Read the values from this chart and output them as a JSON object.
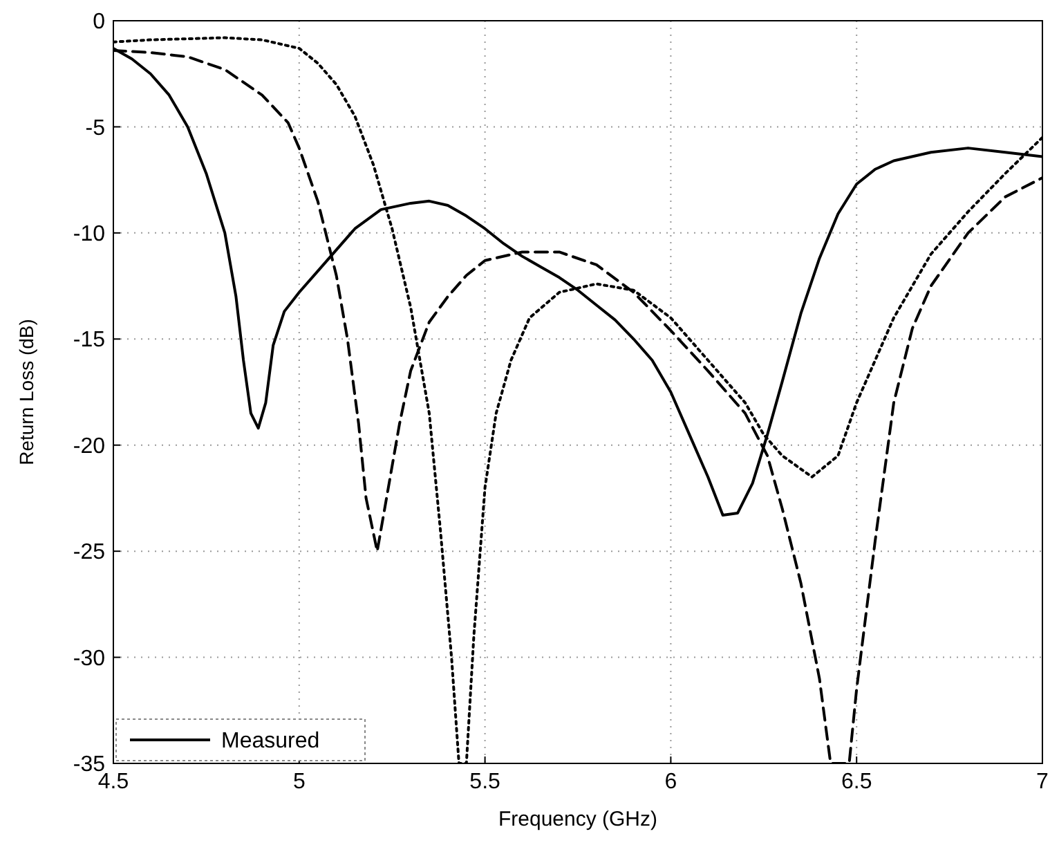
{
  "chart_data": {
    "type": "line",
    "xlabel": "Frequency (GHz)",
    "ylabel": "Return Loss (dB)",
    "xlim": [
      4.5,
      7
    ],
    "xticks": [
      4.5,
      5,
      5.5,
      6,
      6.5,
      7
    ],
    "ylim": [
      -35,
      0
    ],
    "yticks": [
      -35,
      -30,
      -25,
      -20,
      -15,
      -10,
      -5,
      0
    ],
    "grid": true,
    "legend": "bottom left",
    "series": [
      {
        "color": "#000000",
        "line_style": "dashed",
        "x": [
          4.5,
          4.6,
          4.7,
          4.8,
          4.9,
          4.97,
          5.0,
          5.05,
          5.1,
          5.13,
          5.16,
          5.18,
          5.21,
          5.24,
          5.27,
          5.3,
          5.35,
          5.4,
          5.45,
          5.5,
          5.6,
          5.7,
          5.8,
          5.9,
          6.0,
          6.1,
          6.2,
          6.26,
          6.3,
          6.35,
          6.4,
          6.43,
          6.48,
          6.5,
          6.55,
          6.6,
          6.65,
          6.7,
          6.8,
          6.9,
          7
        ],
        "values": [
          -1.4,
          -1.5,
          -1.7,
          -2.3,
          -3.5,
          -4.8,
          -6,
          -8.5,
          -12,
          -15,
          -19,
          -22.5,
          -25,
          -22,
          -19,
          -16.5,
          -14.2,
          -13,
          -12,
          -11.3,
          -10.9,
          -10.9,
          -11.5,
          -12.8,
          -14.6,
          -16.5,
          -18.5,
          -20.5,
          -23,
          -26.5,
          -31,
          -35,
          -35,
          -31.5,
          -24.5,
          -18,
          -14.5,
          -12.5,
          -10,
          -8.3,
          -7.4
        ]
      },
      {
        "color": "#000000",
        "line_style": "dotted",
        "x": [
          4.5,
          4.6,
          4.7,
          4.8,
          4.9,
          5.0,
          5.05,
          5.1,
          5.15,
          5.2,
          5.25,
          5.3,
          5.35,
          5.38,
          5.41,
          5.43,
          5.45,
          5.47,
          5.5,
          5.53,
          5.57,
          5.62,
          5.7,
          5.8,
          5.9,
          6.0,
          6.1,
          6.2,
          6.25,
          6.3,
          6.38,
          6.45,
          6.5,
          6.6,
          6.7,
          6.8,
          6.9,
          7
        ],
        "values": [
          -1.0,
          -0.9,
          -0.85,
          -0.8,
          -0.9,
          -1.3,
          -2,
          -3,
          -4.5,
          -6.8,
          -9.8,
          -13.5,
          -18.5,
          -24,
          -30,
          -35,
          -35,
          -29,
          -22,
          -18.5,
          -16,
          -14,
          -12.8,
          -12.4,
          -12.7,
          -14,
          -16,
          -18,
          -19.5,
          -20.5,
          -21.5,
          -20.5,
          -18,
          -14,
          -11,
          -9,
          -7.2,
          -5.5
        ]
      },
      {
        "name": "Measured",
        "color": "#000000",
        "line_style": "solid",
        "x": [
          4.5,
          4.55,
          4.6,
          4.65,
          4.7,
          4.75,
          4.8,
          4.83,
          4.85,
          4.87,
          4.89,
          4.91,
          4.93,
          4.96,
          5,
          5.05,
          5.1,
          5.15,
          5.22,
          5.3,
          5.35,
          5.4,
          5.45,
          5.5,
          5.55,
          5.6,
          5.65,
          5.7,
          5.75,
          5.8,
          5.85,
          5.9,
          5.95,
          6.0,
          6.05,
          6.1,
          6.14,
          6.18,
          6.22,
          6.26,
          6.3,
          6.35,
          6.4,
          6.45,
          6.5,
          6.55,
          6.6,
          6.7,
          6.8,
          6.9,
          7
        ],
        "values": [
          -1.3,
          -1.8,
          -2.5,
          -3.5,
          -5,
          -7.2,
          -10,
          -13,
          -16,
          -18.5,
          -19.2,
          -18,
          -15.3,
          -13.7,
          -12.8,
          -11.8,
          -10.8,
          -9.8,
          -8.9,
          -8.6,
          -8.5,
          -8.7,
          -9.2,
          -9.8,
          -10.5,
          -11.1,
          -11.6,
          -12.1,
          -12.7,
          -13.4,
          -14.1,
          -15,
          -16,
          -17.5,
          -19.5,
          -21.5,
          -23.3,
          -23.2,
          -21.8,
          -19.5,
          -17,
          -13.8,
          -11.2,
          -9.1,
          -7.7,
          -7,
          -6.6,
          -6.2,
          -6,
          -6.2,
          -6.4
        ]
      }
    ]
  }
}
